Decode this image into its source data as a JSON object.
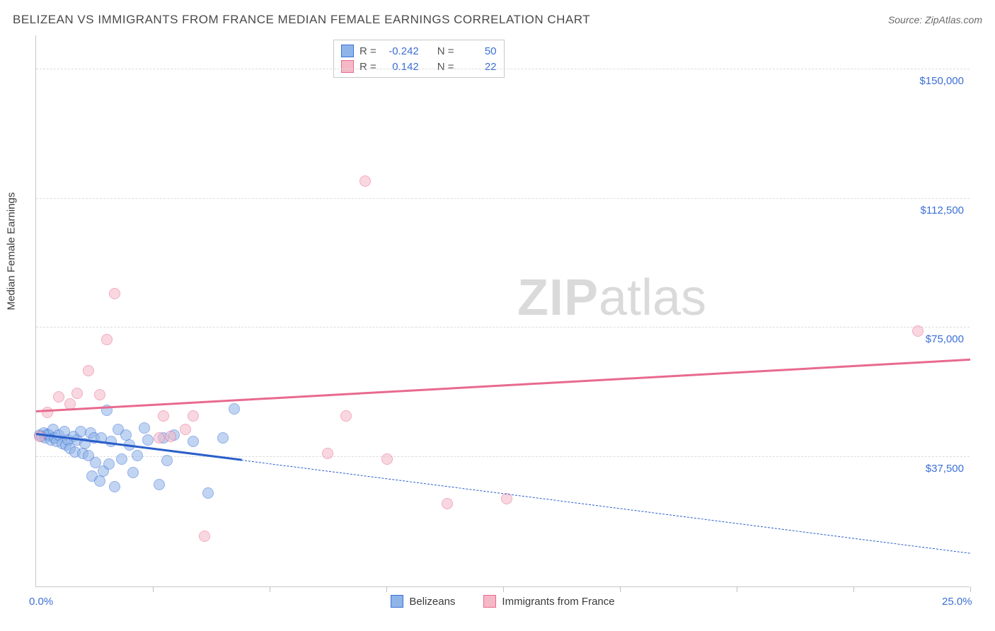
{
  "header": {
    "title": "BELIZEAN VS IMMIGRANTS FROM FRANCE MEDIAN FEMALE EARNINGS CORRELATION CHART",
    "source": "Source: ZipAtlas.com"
  },
  "watermark": {
    "zip": "ZIP",
    "rest": "atlas"
  },
  "chart": {
    "type": "scatter",
    "ylabel": "Median Female Earnings",
    "background_color": "#ffffff",
    "grid_color": "#dcdcdc",
    "axis_color": "#c8c8c8",
    "label_color": "#3b6fd6",
    "label_fontsize": 15,
    "xlim": [
      0,
      25
    ],
    "ylim": [
      0,
      160000
    ],
    "x_ticks": [
      0,
      3.125,
      6.25,
      9.375,
      12.5,
      15.625,
      18.75,
      21.875,
      25
    ],
    "x_tick_labels": {
      "0": "0.0%",
      "25": "25.0%"
    },
    "y_gridlines": [
      37500,
      75000,
      112500,
      150000
    ],
    "y_tick_labels": [
      "$37,500",
      "$75,000",
      "$112,500",
      "$150,000"
    ],
    "marker_radius": 8,
    "marker_opacity": 0.55,
    "series": [
      {
        "name": "Belizeans",
        "fill": "#8fb4e8",
        "stroke": "#3b6fd6",
        "reg_stroke": "#2a5fc9",
        "R": "-0.242",
        "N": "50",
        "reg_solid": {
          "x1": 0,
          "y1": 44000,
          "x2": 5.5,
          "y2": 36500
        },
        "reg_dash": {
          "x1": 5.5,
          "y1": 36500,
          "x2": 25,
          "y2": 9500
        },
        "points": [
          [
            0.1,
            44000
          ],
          [
            0.15,
            43500
          ],
          [
            0.2,
            44500
          ],
          [
            0.25,
            43000
          ],
          [
            0.3,
            44200
          ],
          [
            0.35,
            43800
          ],
          [
            0.4,
            42500
          ],
          [
            0.45,
            45500
          ],
          [
            0.5,
            43000
          ],
          [
            0.55,
            42000
          ],
          [
            0.6,
            44000
          ],
          [
            0.7,
            41500
          ],
          [
            0.75,
            45000
          ],
          [
            0.8,
            41000
          ],
          [
            0.85,
            42500
          ],
          [
            0.9,
            40000
          ],
          [
            1.0,
            43500
          ],
          [
            1.05,
            39000
          ],
          [
            1.1,
            42500
          ],
          [
            1.2,
            45000
          ],
          [
            1.25,
            38500
          ],
          [
            1.3,
            41500
          ],
          [
            1.4,
            38000
          ],
          [
            1.45,
            44500
          ],
          [
            1.5,
            32000
          ],
          [
            1.55,
            43000
          ],
          [
            1.6,
            36000
          ],
          [
            1.7,
            30500
          ],
          [
            1.75,
            43000
          ],
          [
            1.8,
            33500
          ],
          [
            1.9,
            51000
          ],
          [
            1.95,
            35500
          ],
          [
            2.0,
            42000
          ],
          [
            2.1,
            29000
          ],
          [
            2.2,
            45500
          ],
          [
            2.3,
            37000
          ],
          [
            2.4,
            44000
          ],
          [
            2.5,
            41000
          ],
          [
            2.6,
            33000
          ],
          [
            2.7,
            38000
          ],
          [
            2.9,
            46000
          ],
          [
            3.0,
            42500
          ],
          [
            3.3,
            29500
          ],
          [
            3.4,
            43000
          ],
          [
            3.5,
            36500
          ],
          [
            3.7,
            44000
          ],
          [
            4.2,
            42000
          ],
          [
            4.6,
            27000
          ],
          [
            5.0,
            43000
          ],
          [
            5.3,
            51500
          ]
        ]
      },
      {
        "name": "Immigrants from France",
        "fill": "#f5b8c7",
        "stroke": "#e86a8e",
        "reg_stroke": "#e86a8e",
        "R": "0.142",
        "N": "22",
        "reg_solid": {
          "x1": 0,
          "y1": 50500,
          "x2": 25,
          "y2": 65500
        },
        "points": [
          [
            0.1,
            43500
          ],
          [
            0.3,
            50500
          ],
          [
            0.6,
            55000
          ],
          [
            0.9,
            53000
          ],
          [
            1.1,
            56000
          ],
          [
            1.4,
            62500
          ],
          [
            1.7,
            55500
          ],
          [
            1.9,
            71500
          ],
          [
            2.1,
            85000
          ],
          [
            3.3,
            43000
          ],
          [
            3.4,
            49500
          ],
          [
            3.6,
            43500
          ],
          [
            4.0,
            45500
          ],
          [
            4.2,
            49500
          ],
          [
            4.5,
            14500
          ],
          [
            7.8,
            38500
          ],
          [
            8.3,
            49500
          ],
          [
            8.8,
            117500
          ],
          [
            9.4,
            37000
          ],
          [
            11.0,
            24000
          ],
          [
            12.6,
            25500
          ],
          [
            23.6,
            74000
          ]
        ]
      }
    ],
    "legend": {
      "R_label": "R =",
      "N_label": "N ="
    }
  }
}
